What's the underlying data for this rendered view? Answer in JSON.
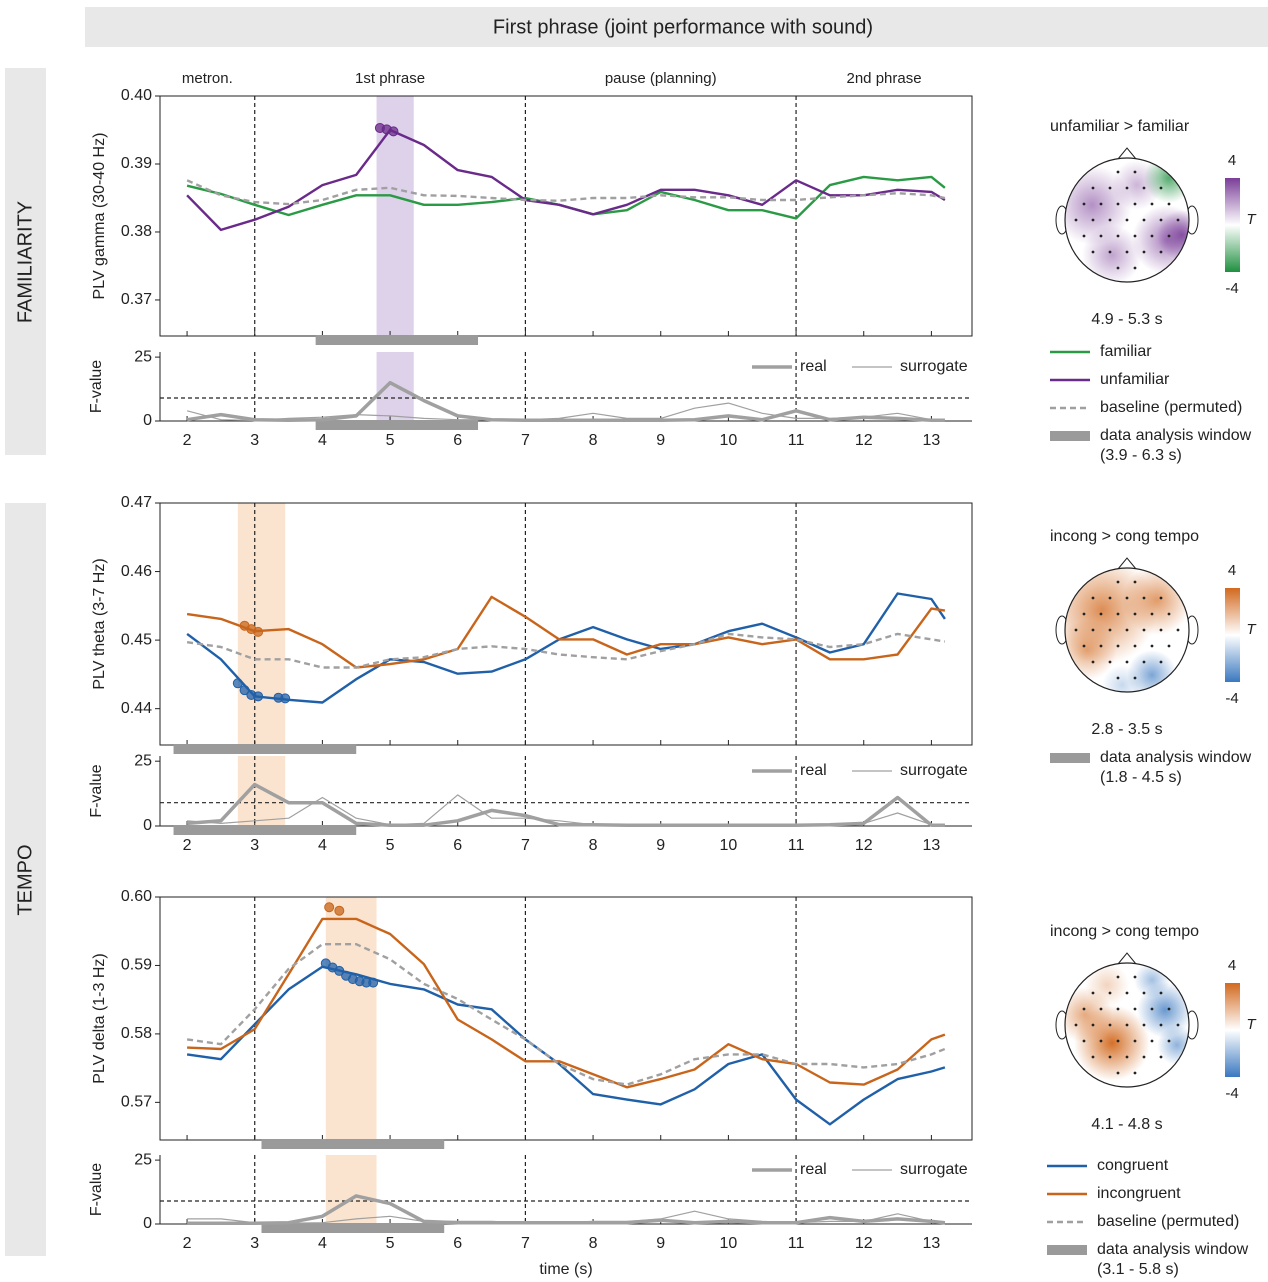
{
  "header": {
    "title": "First phrase (joint performance with sound)",
    "rows": [
      "FAMILIARITY",
      "TEMPO"
    ]
  },
  "chart_data": [
    {
      "type": "line",
      "ylabel": "PLV gamma (30-40 Hz)",
      "segments": [
        "metron.",
        "1st phrase",
        "pause (planning)",
        "2nd phrase"
      ],
      "x": [
        2,
        2.5,
        3,
        3.5,
        4,
        4.5,
        5,
        5.5,
        6,
        6.5,
        7,
        7.5,
        8,
        8.5,
        9,
        9.5,
        10,
        10.5,
        11,
        11.5,
        12,
        12.5,
        13,
        13.2
      ],
      "series": [
        {
          "name": "familiar",
          "color": "#2a9a45",
          "values": [
            0.3868,
            0.3856,
            0.384,
            0.3825,
            0.384,
            0.3854,
            0.3854,
            0.384,
            0.384,
            0.3844,
            0.385,
            0.384,
            0.3826,
            0.3832,
            0.3859,
            0.3847,
            0.3832,
            0.3832,
            0.382,
            0.3869,
            0.3881,
            0.3876,
            0.3881,
            0.3865
          ]
        },
        {
          "name": "unfamiliar",
          "color": "#6a2a8a",
          "values": [
            0.3854,
            0.3803,
            0.3818,
            0.3837,
            0.3869,
            0.3884,
            0.395,
            0.3928,
            0.3891,
            0.3881,
            0.3847,
            0.384,
            0.3826,
            0.384,
            0.3862,
            0.3862,
            0.3854,
            0.384,
            0.3876,
            0.3854,
            0.3854,
            0.3862,
            0.3859,
            0.3847
          ],
          "markers": {
            "x": [
              4.85,
              4.95,
              5.05
            ],
            "values": [
              0.3953,
              0.3951,
              0.3948
            ]
          }
        },
        {
          "name": "baseline (permuted)",
          "color": "#a0a0a0",
          "dash": true,
          "values": [
            0.3876,
            0.3854,
            0.3844,
            0.3841,
            0.3847,
            0.3862,
            0.3865,
            0.3854,
            0.3853,
            0.385,
            0.3847,
            0.3846,
            0.385,
            0.385,
            0.3854,
            0.3851,
            0.3851,
            0.3847,
            0.3847,
            0.3851,
            0.3854,
            0.3857,
            0.3854,
            0.385
          ]
        }
      ],
      "xlim": [
        1.6,
        13.6
      ],
      "ylim": [
        0.3647,
        0.4
      ],
      "xticks": [
        2,
        3,
        4,
        5,
        6,
        7,
        8,
        9,
        10,
        11,
        12,
        13
      ],
      "yticks": [
        0.37,
        0.38,
        0.39,
        {
          "value": 0.4,
          "label": "0.40"
        }
      ],
      "vlines": [
        3,
        7,
        11
      ],
      "highlight": {
        "range": [
          4.8,
          5.35
        ],
        "color": "#ddd2ea"
      },
      "window": {
        "name": "data analysis window",
        "label": "(3.9 - 6.3 s)",
        "range": [
          3.9,
          6.3
        ]
      },
      "legend": "right"
    },
    {
      "type": "line",
      "ylabel": "F-value",
      "x": [
        2,
        2.5,
        3,
        3.5,
        4,
        4.5,
        5,
        5.5,
        6,
        6.5,
        7,
        7.5,
        8,
        8.5,
        9,
        9.5,
        10,
        10.5,
        11,
        11.5,
        12,
        12.5,
        13,
        13.2
      ],
      "series": [
        {
          "name": "real",
          "color": "#a0a0a0",
          "weight": "thick",
          "values": [
            0.5,
            2.5,
            0.5,
            0.3,
            0.5,
            2,
            15,
            8,
            2,
            0.5,
            0.3,
            0.3,
            0.3,
            0.3,
            0.3,
            0.5,
            2,
            0.5,
            4,
            0.5,
            1.5,
            1,
            0.3,
            0.3
          ]
        },
        {
          "name": "surrogate",
          "color": "#a0a0a0",
          "weight": "thin",
          "values": [
            4,
            0.5,
            0.2,
            1,
            1.5,
            2.5,
            2,
            1,
            0.5,
            0.5,
            0.5,
            1,
            3,
            1,
            1,
            5,
            7,
            3,
            1,
            1,
            1.5,
            3,
            0.5,
            0.5
          ]
        }
      ],
      "xlim": [
        1.6,
        13.6
      ],
      "ylim": [
        0,
        27
      ],
      "xticks": [
        2,
        3,
        4,
        5,
        6,
        7,
        8,
        9,
        10,
        11,
        12,
        13
      ],
      "xtick_labels": true,
      "yticks": [
        0,
        25
      ],
      "vlines": [
        3,
        7,
        11
      ],
      "threshold": 9,
      "highlight": {
        "range": [
          4.8,
          5.35
        ],
        "color": "#ddd2ea"
      },
      "window": {
        "range": [
          3.9,
          6.3
        ]
      },
      "legend": "inside"
    },
    {
      "type": "line",
      "ylabel": "PLV theta (3-7 Hz)",
      "x": [
        2,
        2.5,
        3,
        3.5,
        4,
        4.5,
        5,
        5.5,
        6,
        6.5,
        7,
        7.5,
        8,
        8.5,
        9,
        9.5,
        10,
        10.5,
        11,
        11.5,
        12,
        12.5,
        13,
        13.2
      ],
      "series": [
        {
          "color": "#2060a8",
          "values": [
            0.4509,
            0.4472,
            0.4418,
            0.4413,
            0.4409,
            0.4443,
            0.4472,
            0.4468,
            0.4451,
            0.4454,
            0.4472,
            0.4501,
            0.4519,
            0.4501,
            0.4487,
            0.4494,
            0.4513,
            0.4524,
            0.4504,
            0.4482,
            0.4494,
            0.4568,
            0.456,
            0.4531
          ],
          "markers": {
            "x": [
              2.75,
              2.85,
              2.95,
              3.05,
              3.35,
              3.45
            ],
            "values": [
              0.4437,
              0.4427,
              0.442,
              0.4418,
              0.4416,
              0.4415
            ]
          }
        },
        {
          "color": "#c8651b",
          "values": [
            0.4538,
            0.4531,
            0.4513,
            0.4516,
            0.4494,
            0.446,
            0.4465,
            0.4472,
            0.4487,
            0.4563,
            0.4534,
            0.4501,
            0.4501,
            0.4479,
            0.4494,
            0.4494,
            0.4504,
            0.4494,
            0.4501,
            0.4472,
            0.4472,
            0.4479,
            0.4546,
            0.4543
          ],
          "markers": {
            "x": [
              2.85,
              2.95,
              3.05
            ],
            "values": [
              0.4521,
              0.4516,
              0.4512
            ]
          }
        },
        {
          "color": "#a0a0a0",
          "dash": true,
          "values": [
            0.4497,
            0.449,
            0.4472,
            0.4472,
            0.446,
            0.446,
            0.4472,
            0.4475,
            0.4487,
            0.4491,
            0.4487,
            0.4479,
            0.4475,
            0.4472,
            0.4484,
            0.4494,
            0.4509,
            0.4504,
            0.4501,
            0.449,
            0.4494,
            0.4509,
            0.4501,
            0.4498
          ]
        }
      ],
      "xlim": [
        1.6,
        13.6
      ],
      "ylim": [
        0.4347,
        0.47
      ],
      "xticks": [
        2,
        3,
        4,
        5,
        6,
        7,
        8,
        9,
        10,
        11,
        12,
        13
      ],
      "yticks": [
        0.44,
        0.45,
        0.46,
        0.47
      ],
      "vlines": [
        3,
        7,
        11
      ],
      "highlight": {
        "range": [
          2.75,
          3.45
        ],
        "color": "#fbe4cf"
      },
      "window": {
        "name": "data analysis window",
        "label": "(1.8 - 4.5 s)",
        "range": [
          1.8,
          4.5
        ]
      },
      "legend": "right"
    },
    {
      "type": "line",
      "ylabel": "F-value",
      "x": [
        2,
        2.5,
        3,
        3.5,
        4,
        4.5,
        5,
        5.5,
        6,
        6.5,
        7,
        7.5,
        8,
        8.5,
        9,
        9.5,
        10,
        10.5,
        11,
        11.5,
        12,
        12.5,
        13,
        13.2
      ],
      "series": [
        {
          "name": "real",
          "color": "#a0a0a0",
          "weight": "thick",
          "values": [
            1,
            2,
            16,
            9,
            9,
            1,
            0.3,
            0.3,
            2,
            6,
            4,
            0.5,
            0.5,
            0.3,
            0.3,
            0.3,
            0.3,
            0.3,
            0.3,
            0.5,
            1,
            11,
            0.3,
            0.3
          ]
        },
        {
          "name": "surrogate",
          "color": "#a0a0a0",
          "weight": "thin",
          "values": [
            2,
            1,
            2,
            3,
            11,
            3,
            0.5,
            1,
            12,
            3,
            3,
            2,
            0.5,
            0.5,
            0.5,
            0.5,
            0.5,
            0.5,
            0.5,
            0.5,
            1,
            5,
            0.5,
            0.5
          ]
        }
      ],
      "xlim": [
        1.6,
        13.6
      ],
      "ylim": [
        0,
        27
      ],
      "xticks": [
        2,
        3,
        4,
        5,
        6,
        7,
        8,
        9,
        10,
        11,
        12,
        13
      ],
      "xtick_labels": true,
      "yticks": [
        0,
        25
      ],
      "vlines": [
        3,
        7,
        11
      ],
      "threshold": 9,
      "highlight": {
        "range": [
          2.75,
          3.45
        ],
        "color": "#fbe4cf"
      },
      "window": {
        "range": [
          1.8,
          4.5
        ]
      },
      "legend": "inside"
    },
    {
      "type": "line",
      "ylabel": "PLV delta (1-3 Hz)",
      "x": [
        2,
        2.5,
        3,
        3.5,
        4,
        4.5,
        5,
        5.5,
        6,
        6.5,
        7,
        7.5,
        8,
        8.5,
        9,
        9.5,
        10,
        10.5,
        11,
        11.5,
        12,
        12.5,
        13,
        13.2
      ],
      "series": [
        {
          "name": "congruent",
          "color": "#2060a8",
          "values": [
            0.577,
            0.5763,
            0.5814,
            0.5865,
            0.5898,
            0.5887,
            0.5873,
            0.5865,
            0.5843,
            0.5836,
            0.5792,
            0.5756,
            0.5712,
            0.5704,
            0.5697,
            0.5719,
            0.5756,
            0.577,
            0.5704,
            0.5668,
            0.5704,
            0.5734,
            0.5745,
            0.5751
          ],
          "markers": {
            "x": [
              4.05,
              4.15,
              4.25,
              4.35,
              4.45,
              4.55,
              4.65,
              4.75
            ],
            "values": [
              0.5903,
              0.5897,
              0.5892,
              0.5885,
              0.588,
              0.5877,
              0.5875,
              0.5875
            ]
          }
        },
        {
          "name": "incongruent",
          "color": "#c8651b",
          "values": [
            0.578,
            0.5778,
            0.5807,
            0.5887,
            0.5968,
            0.5968,
            0.5946,
            0.5902,
            0.5821,
            0.5792,
            0.576,
            0.576,
            0.5741,
            0.5722,
            0.5734,
            0.5748,
            0.5785,
            0.5763,
            0.5756,
            0.5729,
            0.5726,
            0.5748,
            0.5792,
            0.5799
          ],
          "markers": {
            "x": [
              4.1,
              4.25
            ],
            "values": [
              0.5985,
              0.598
            ]
          }
        },
        {
          "name": "baseline (permuted)",
          "color": "#a0a0a0",
          "dash": true,
          "values": [
            0.5792,
            0.5785,
            0.5836,
            0.5895,
            0.5931,
            0.5931,
            0.5909,
            0.5873,
            0.5851,
            0.5821,
            0.5792,
            0.5756,
            0.5734,
            0.5726,
            0.5741,
            0.5763,
            0.577,
            0.577,
            0.5756,
            0.5756,
            0.5751,
            0.5756,
            0.577,
            0.5778
          ]
        }
      ],
      "xlim": [
        1.6,
        13.6
      ],
      "ylim": [
        0.5645,
        0.6
      ],
      "xticks": [
        2,
        3,
        4,
        5,
        6,
        7,
        8,
        9,
        10,
        11,
        12,
        13
      ],
      "yticks": [
        0.57,
        0.58,
        0.59,
        {
          "value": 0.6,
          "label": "0.60"
        }
      ],
      "vlines": [
        3,
        7,
        11
      ],
      "highlight": {
        "range": [
          4.05,
          4.8
        ],
        "color": "#fbe4cf"
      },
      "window": {
        "name": "data analysis window",
        "label": "(3.1 - 5.8 s)",
        "range": [
          3.1,
          5.8
        ]
      },
      "legend": "right"
    },
    {
      "type": "line",
      "ylabel": "F-value",
      "xlabel": "time (s)",
      "x": [
        2,
        2.5,
        3,
        3.5,
        4,
        4.5,
        5,
        5.5,
        6,
        6.5,
        7,
        7.5,
        8,
        8.5,
        9,
        9.5,
        10,
        10.5,
        11,
        11.5,
        12,
        12.5,
        13,
        13.2
      ],
      "series": [
        {
          "name": "real",
          "color": "#a0a0a0",
          "weight": "thick",
          "values": [
            0.3,
            0.3,
            0.3,
            0.5,
            3,
            11,
            8,
            1,
            0.5,
            0.5,
            0.5,
            0.5,
            0.5,
            0.5,
            1.5,
            0.5,
            1,
            0.5,
            0.5,
            2.5,
            1,
            2,
            1,
            0.5
          ]
        },
        {
          "name": "surrogate",
          "color": "#a0a0a0",
          "weight": "thin",
          "values": [
            2,
            2,
            0.5,
            0.3,
            0.5,
            2,
            3,
            1,
            1,
            1,
            0.5,
            0.5,
            1,
            1,
            2,
            5,
            2,
            1,
            0.5,
            1,
            1,
            4,
            1,
            0.5
          ]
        }
      ],
      "xlim": [
        1.6,
        13.6
      ],
      "ylim": [
        0,
        27
      ],
      "xticks": [
        2,
        3,
        4,
        5,
        6,
        7,
        8,
        9,
        10,
        11,
        12,
        13
      ],
      "xtick_labels": true,
      "yticks": [
        0,
        25
      ],
      "vlines": [
        3,
        7,
        11
      ],
      "threshold": 9,
      "highlight": {
        "range": [
          4.05,
          4.8
        ],
        "color": "#fbe4cf"
      },
      "window": {
        "range": [
          3.1,
          5.8
        ]
      },
      "legend": "inside"
    }
  ],
  "topomaps": [
    {
      "title": "unfamiliar > familiar",
      "time": "4.9 - 5.3 s",
      "colorbar": {
        "colors": [
          "#7a3d98",
          "#ffffff",
          "#1f9040"
        ],
        "ticks": [
          4,
          -4
        ],
        "label": "T"
      }
    },
    {
      "title": "incong > cong tempo",
      "time": "2.8 - 3.5 s",
      "colorbar": {
        "colors": [
          "#d2691e",
          "#ffffff",
          "#3a78c0"
        ],
        "ticks": [
          4,
          -4
        ],
        "label": "T"
      }
    },
    {
      "title": "incong > cong tempo",
      "time": "4.1 - 4.8 s",
      "colorbar": {
        "colors": [
          "#d2691e",
          "#ffffff",
          "#3a78c0"
        ],
        "ticks": [
          4,
          -4
        ],
        "label": "T"
      }
    }
  ]
}
